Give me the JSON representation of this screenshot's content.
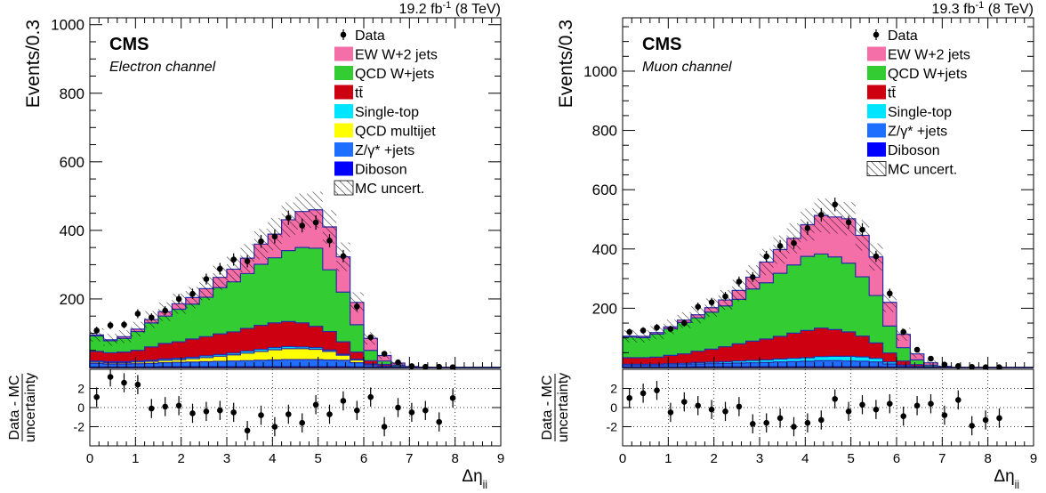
{
  "colors": {
    "ew": "#f46fa8",
    "qcd": "#33cc33",
    "ttbar": "#cc0011",
    "singletop": "#00e5ff",
    "multijet": "#ffff00",
    "zjets": "#1f6fff",
    "diboson": "#0000ff",
    "outline": "#2a2aa8",
    "data": "#000000"
  },
  "chart_data": [
    {
      "type": "bar",
      "subtype": "stacked-histogram-with-ratio",
      "cms_label": "CMS",
      "channel": "Electron channel",
      "lumi_main": "19.2 fb",
      "lumi_sup": "-1",
      "lumi_energy": " (8 TeV)",
      "ylabel": "Events/0.3",
      "ratio_ylabel_top": "Data - MC",
      "ratio_ylabel_bottom": "uncertainty",
      "xlabel_main": "Δη",
      "xlabel_sub": "jj",
      "xlim": [
        0,
        9
      ],
      "ylim": [
        0,
        1020
      ],
      "yticks": [
        200,
        400,
        600,
        800,
        1000
      ],
      "ratio_ylim": [
        -4,
        4
      ],
      "ratio_yticks": [
        -2,
        0,
        2
      ],
      "xticks": [
        0,
        1,
        2,
        3,
        4,
        5,
        6,
        7,
        8,
        9
      ],
      "bin_width": 0.3,
      "legend_position": "top-right",
      "legend": [
        {
          "key": "data",
          "label": "Data",
          "kind": "marker"
        },
        {
          "key": "ew",
          "label": "EW W+2 jets",
          "kind": "box"
        },
        {
          "key": "qcd",
          "label": "QCD W+jets",
          "kind": "box"
        },
        {
          "key": "ttbar",
          "label": "tt̄",
          "kind": "box"
        },
        {
          "key": "singletop",
          "label": "Single-top",
          "kind": "box"
        },
        {
          "key": "multijet",
          "label": "QCD multijet",
          "kind": "box"
        },
        {
          "key": "zjets",
          "label": "Z/γ* +jets",
          "kind": "box"
        },
        {
          "key": "diboson",
          "label": "Diboson",
          "kind": "box"
        },
        {
          "key": "unc",
          "label": "MC uncert.",
          "kind": "hatch"
        }
      ],
      "series": [
        {
          "key": "diboson",
          "name": "Diboson",
          "values": [
            2,
            2,
            2,
            2,
            2,
            3,
            3,
            3,
            3,
            3,
            3,
            3,
            3,
            3,
            3,
            3,
            3,
            3,
            3,
            2,
            1,
            1,
            0,
            0,
            0,
            0,
            0,
            0,
            0,
            0
          ]
        },
        {
          "key": "zjets",
          "name": "Z/γ* +jets",
          "values": [
            10,
            8,
            8,
            9,
            10,
            11,
            12,
            13,
            14,
            15,
            16,
            17,
            18,
            19,
            20,
            20,
            20,
            19,
            18,
            12,
            5,
            2,
            1,
            0,
            0,
            0,
            0,
            0,
            0,
            0
          ]
        },
        {
          "key": "multijet",
          "name": "QCD multijet",
          "values": [
            4,
            4,
            4,
            5,
            6,
            7,
            8,
            10,
            12,
            15,
            18,
            22,
            26,
            30,
            32,
            32,
            30,
            25,
            15,
            8,
            3,
            1,
            0,
            0,
            0,
            0,
            0,
            0,
            0,
            0
          ]
        },
        {
          "key": "singletop",
          "name": "Single-top",
          "values": [
            3,
            3,
            3,
            3,
            3,
            4,
            4,
            4,
            5,
            5,
            5,
            6,
            6,
            6,
            6,
            5,
            5,
            4,
            3,
            2,
            1,
            0,
            0,
            0,
            0,
            0,
            0,
            0,
            0,
            0
          ]
        },
        {
          "key": "ttbar",
          "name": "tt̄",
          "values": [
            28,
            26,
            28,
            31,
            39,
            45,
            48,
            53,
            56,
            60,
            62,
            66,
            70,
            72,
            73,
            70,
            62,
            54,
            36,
            21,
            10,
            5,
            2,
            0,
            0,
            0,
            0,
            0,
            0,
            0
          ]
        },
        {
          "key": "qcd",
          "name": "QCD W+jets",
          "values": [
            45,
            35,
            40,
            55,
            70,
            80,
            95,
            102,
            115,
            135,
            146,
            160,
            178,
            190,
            207,
            220,
            228,
            180,
            145,
            80,
            30,
            10,
            4,
            1,
            0,
            0,
            0,
            0,
            0,
            0
          ]
        },
        {
          "key": "ew",
          "name": "EW W+2 jets",
          "values": [
            3,
            3,
            5,
            7,
            10,
            13,
            16,
            19,
            25,
            30,
            37,
            45,
            59,
            69,
            90,
            105,
            112,
            125,
            103,
            65,
            35,
            16,
            6,
            2,
            1,
            0,
            0,
            0,
            0,
            0
          ]
        }
      ],
      "data": {
        "x": [
          0.15,
          0.45,
          0.75,
          1.05,
          1.35,
          1.65,
          1.95,
          2.25,
          2.55,
          2.85,
          3.15,
          3.45,
          3.75,
          4.05,
          4.35,
          4.65,
          4.95,
          5.25,
          5.55,
          5.85,
          6.15,
          6.45,
          6.75,
          7.05,
          7.35,
          7.65,
          7.95
        ],
        "y": [
          108,
          123,
          125,
          157,
          146,
          166,
          200,
          215,
          258,
          288,
          315,
          310,
          368,
          382,
          437,
          414,
          423,
          370,
          325,
          178,
          88,
          40,
          15,
          4,
          2,
          2,
          1
        ],
        "err": [
          11,
          11,
          11,
          13,
          12,
          13,
          14,
          15,
          16,
          17,
          18,
          18,
          19,
          20,
          21,
          20,
          21,
          19,
          18,
          13,
          9,
          6,
          4,
          2,
          1,
          1,
          1
        ]
      },
      "ratio": {
        "x": [
          0.15,
          0.45,
          0.75,
          1.05,
          1.35,
          1.65,
          1.95,
          2.25,
          2.55,
          2.85,
          3.15,
          3.45,
          3.75,
          4.05,
          4.35,
          4.65,
          4.95,
          5.25,
          5.55,
          5.85,
          6.15,
          6.45,
          6.75,
          7.05,
          7.35,
          7.65,
          7.95
        ],
        "y": [
          1.1,
          3.2,
          2.6,
          2.4,
          -0.1,
          0.1,
          0.2,
          -0.6,
          -0.4,
          -0.3,
          -0.5,
          -2.4,
          -0.8,
          -2.0,
          -0.7,
          -1.6,
          0.3,
          -0.7,
          0.7,
          -0.3,
          1.1,
          -2.0,
          0.0,
          -0.5,
          -0.3,
          -1.5,
          1.0
        ],
        "err": [
          1,
          1,
          1,
          1,
          1,
          1,
          1,
          1,
          1,
          1,
          1,
          1,
          1,
          1,
          1,
          1,
          1,
          1,
          1,
          1,
          1,
          1,
          1,
          1,
          1,
          1,
          1
        ]
      }
    },
    {
      "type": "bar",
      "subtype": "stacked-histogram-with-ratio",
      "cms_label": "CMS",
      "channel": "Muon channel",
      "lumi_main": "19.3 fb",
      "lumi_sup": "-1",
      "lumi_energy": " (8 TeV)",
      "ylabel": "Events/0.3",
      "ratio_ylabel_top": "Data - MC",
      "ratio_ylabel_bottom": "uncertainty",
      "xlabel_main": "Δη",
      "xlabel_sub": "jj",
      "xlim": [
        0,
        9
      ],
      "ylim": [
        0,
        1180
      ],
      "yticks": [
        200,
        400,
        600,
        800,
        1000
      ],
      "ratio_ylim": [
        -4,
        4
      ],
      "ratio_yticks": [
        -2,
        0,
        2
      ],
      "xticks": [
        0,
        1,
        2,
        3,
        4,
        5,
        6,
        7,
        8,
        9
      ],
      "bin_width": 0.3,
      "legend_position": "top-right",
      "legend": [
        {
          "key": "data",
          "label": "Data",
          "kind": "marker"
        },
        {
          "key": "ew",
          "label": "EW W+2 jets",
          "kind": "box"
        },
        {
          "key": "qcd",
          "label": "QCD W+jets",
          "kind": "box"
        },
        {
          "key": "ttbar",
          "label": "tt̄",
          "kind": "box"
        },
        {
          "key": "singletop",
          "label": "Single-top",
          "kind": "box"
        },
        {
          "key": "zjets",
          "label": "Z/γ* +jets",
          "kind": "box"
        },
        {
          "key": "diboson",
          "label": "Diboson",
          "kind": "box"
        },
        {
          "key": "unc",
          "label": "MC uncert.",
          "kind": "hatch"
        }
      ],
      "series": [
        {
          "key": "diboson",
          "name": "Diboson",
          "values": [
            2,
            2,
            2,
            2,
            2,
            3,
            3,
            3,
            3,
            3,
            3,
            3,
            3,
            3,
            3,
            3,
            3,
            3,
            3,
            2,
            1,
            1,
            0,
            0,
            0,
            0,
            0,
            0,
            0,
            0
          ]
        },
        {
          "key": "zjets",
          "name": "Z/γ* +jets",
          "values": [
            6,
            6,
            6,
            7,
            8,
            9,
            10,
            11,
            12,
            13,
            14,
            16,
            17,
            18,
            20,
            20,
            19,
            18,
            16,
            10,
            4,
            2,
            1,
            0,
            0,
            0,
            0,
            0,
            0,
            0
          ]
        },
        {
          "key": "singletop",
          "name": "Single-top",
          "values": [
            3,
            3,
            3,
            4,
            4,
            5,
            5,
            6,
            7,
            8,
            9,
            10,
            11,
            12,
            14,
            15,
            16,
            15,
            12,
            7,
            3,
            1,
            0,
            0,
            0,
            0,
            0,
            0,
            0,
            0
          ]
        },
        {
          "key": "ttbar",
          "name": "tt̄",
          "values": [
            22,
            22,
            24,
            28,
            32,
            38,
            44,
            50,
            58,
            65,
            70,
            76,
            85,
            92,
            96,
            90,
            82,
            70,
            52,
            30,
            14,
            6,
            2,
            0,
            0,
            0,
            0,
            0,
            0,
            0
          ]
        },
        {
          "key": "qcd",
          "name": "QCD W+jets",
          "values": [
            70,
            68,
            78,
            90,
            106,
            113,
            125,
            138,
            150,
            176,
            190,
            213,
            230,
            250,
            250,
            245,
            232,
            200,
            160,
            91,
            45,
            16,
            5,
            1,
            0,
            0,
            0,
            0,
            0,
            0
          ]
        },
        {
          "key": "ew",
          "name": "EW W+2 jets",
          "values": [
            3,
            4,
            5,
            6,
            8,
            10,
            15,
            20,
            30,
            40,
            70,
            80,
            90,
            107,
            130,
            135,
            150,
            140,
            130,
            80,
            45,
            20,
            8,
            3,
            1,
            0,
            0,
            0,
            0,
            0
          ]
        }
      ],
      "data": {
        "x": [
          0.15,
          0.45,
          0.75,
          1.05,
          1.35,
          1.65,
          1.95,
          2.25,
          2.55,
          2.85,
          3.15,
          3.45,
          3.75,
          4.05,
          4.35,
          4.65,
          4.95,
          5.25,
          5.55,
          5.85,
          6.15,
          6.45,
          6.75,
          7.05,
          7.35,
          7.65,
          7.95,
          8.25
        ],
        "y": [
          120,
          125,
          135,
          130,
          150,
          205,
          220,
          240,
          290,
          305,
          375,
          410,
          420,
          470,
          515,
          550,
          490,
          465,
          375,
          250,
          120,
          60,
          30,
          10,
          5,
          2,
          1,
          1
        ],
        "err": [
          11,
          11,
          12,
          11,
          12,
          14,
          15,
          15,
          17,
          17,
          19,
          20,
          20,
          22,
          23,
          23,
          22,
          22,
          19,
          16,
          11,
          8,
          5,
          3,
          2,
          1,
          1,
          1
        ]
      },
      "ratio": {
        "x": [
          0.15,
          0.45,
          0.75,
          1.05,
          1.35,
          1.65,
          1.95,
          2.25,
          2.55,
          2.85,
          3.15,
          3.45,
          3.75,
          4.05,
          4.35,
          4.65,
          4.95,
          5.25,
          5.55,
          5.85,
          6.15,
          6.45,
          6.75,
          7.05,
          7.35,
          7.65,
          7.95,
          8.25
        ],
        "y": [
          1.0,
          1.5,
          1.8,
          -0.5,
          0.6,
          0.2,
          -0.2,
          -0.4,
          0.1,
          -1.7,
          -1.6,
          -1.1,
          -2.0,
          -1.6,
          -1.3,
          0.9,
          -0.4,
          0.3,
          -0.2,
          0.4,
          -0.9,
          0.2,
          0.4,
          -0.8,
          0.8,
          -1.9,
          -1.3,
          -1.1
        ],
        "err": [
          1,
          1,
          1,
          1,
          1,
          1,
          1,
          1,
          1,
          1,
          1,
          1,
          1,
          1,
          1,
          1,
          1,
          1,
          1,
          1,
          1,
          1,
          1,
          1,
          1,
          1,
          1,
          1
        ]
      }
    }
  ]
}
